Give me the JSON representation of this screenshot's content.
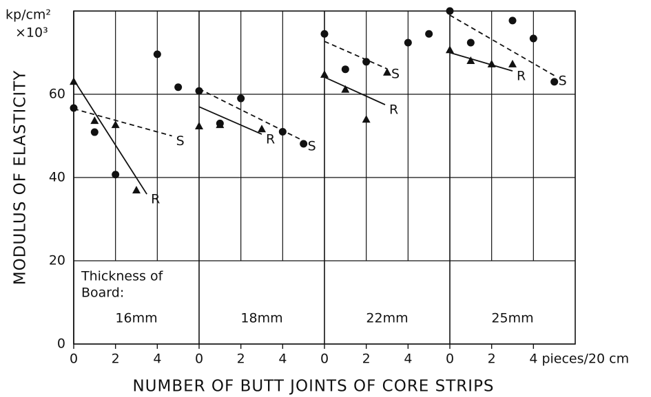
{
  "chart_data": {
    "type": "scatter",
    "y_label": "MODULUS OF ELASTICITY",
    "x_label": "NUMBER OF BUTT JOINTS OF CORE STRIPS",
    "y_unit": "kp/cm²",
    "y_multiplier": "×10³",
    "panel_caption": [
      "Thickness of",
      "Board:"
    ],
    "ylim": [
      0,
      80
    ],
    "yticks": [
      0,
      20,
      40,
      60
    ],
    "xlim": [
      0,
      6
    ],
    "grid": true,
    "panels": [
      {
        "label": "16mm",
        "xticks": [
          0,
          2,
          4
        ],
        "circles": {
          "x": [
            0,
            1,
            2,
            4,
            5
          ],
          "values": [
            56.7,
            50.9,
            40.7,
            69.6,
            61.7
          ]
        },
        "triangles": {
          "x": [
            0,
            1,
            2,
            3
          ],
          "values": [
            63.1,
            53.7,
            52.7,
            37
          ]
        },
        "lines": [
          {
            "name": "S",
            "style": "dashed",
            "x": [
              0,
              4.7
            ],
            "values": [
              56.5,
              50
            ]
          },
          {
            "name": "R",
            "style": "solid",
            "x": [
              0,
              3.5
            ],
            "values": [
              63.5,
              36
            ]
          }
        ]
      },
      {
        "label": "18mm",
        "xticks": [
          0,
          2,
          4
        ],
        "circles": {
          "x": [
            0,
            1,
            2,
            4,
            5
          ],
          "values": [
            60.8,
            53,
            59,
            51,
            48.1
          ]
        },
        "triangles": {
          "x": [
            0,
            1,
            3
          ],
          "values": [
            52.4,
            52.7,
            51.7
          ]
        },
        "lines": [
          {
            "name": "S",
            "style": "dashed",
            "x": [
              0,
              5
            ],
            "values": [
              61.3,
              48.8
            ]
          },
          {
            "name": "R",
            "style": "solid",
            "x": [
              0,
              3
            ],
            "values": [
              57,
              50.4
            ]
          }
        ]
      },
      {
        "label": "22mm",
        "xticks": [
          0,
          2,
          4
        ],
        "circles": {
          "x": [
            0,
            1,
            2,
            4,
            5
          ],
          "values": [
            74.5,
            66,
            67.8,
            72.4,
            74.5
          ]
        },
        "triangles": {
          "x": [
            0,
            1,
            2,
            3
          ],
          "values": [
            64.8,
            61.2,
            54,
            65.3
          ]
        },
        "lines": [
          {
            "name": "S",
            "style": "dashed",
            "x": [
              0,
              3
            ],
            "values": [
              72.7,
              66.1
            ]
          },
          {
            "name": "R",
            "style": "solid",
            "x": [
              0,
              2.9
            ],
            "values": [
              64.1,
              57.5
            ]
          }
        ]
      },
      {
        "label": "25mm",
        "xticks": [
          0,
          2,
          {
            "value": 4,
            "label": "4 pieces/20 cm"
          }
        ],
        "circles": {
          "x": [
            0,
            1,
            3,
            4,
            5
          ],
          "values": [
            80,
            72.4,
            77.7,
            73.4,
            63
          ]
        },
        "triangles": {
          "x": [
            0,
            1,
            2,
            3
          ],
          "values": [
            70.7,
            68.1,
            67.3,
            67.3
          ]
        },
        "lines": [
          {
            "name": "S",
            "style": "dashed",
            "x": [
              0,
              5
            ],
            "values": [
              79,
              64.5
            ]
          },
          {
            "name": "R",
            "style": "solid",
            "x": [
              0,
              3
            ],
            "values": [
              70,
              65.6
            ]
          }
        ]
      }
    ]
  }
}
